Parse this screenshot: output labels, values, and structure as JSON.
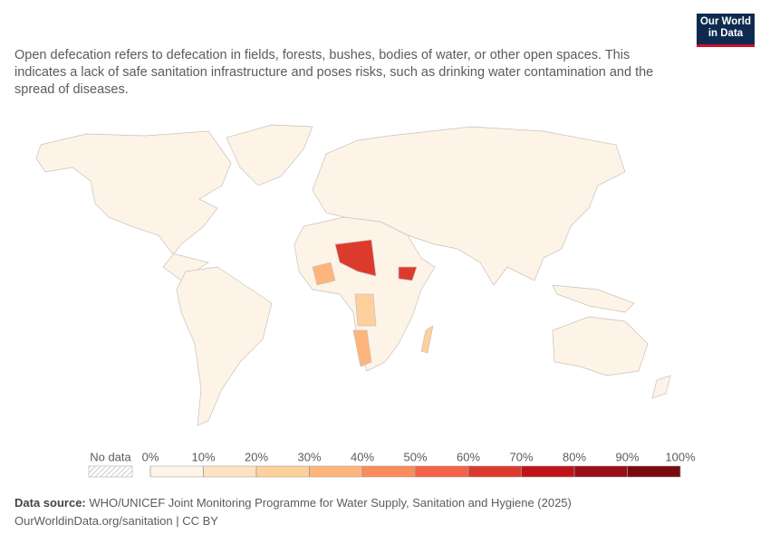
{
  "header": {
    "subtitle": "Open defecation refers to defecation in fields, forests, bushes, bodies of water, or other open spaces. This indicates a lack of safe sanitation infrastructure and poses risks, such as drinking water contamination and the spread of diseases.",
    "logo_line1": "Our World",
    "logo_line2": "in Data"
  },
  "legend": {
    "no_data": "No data",
    "bins": [
      {
        "value": 0,
        "label": "0%"
      },
      {
        "value": 10,
        "label": "10%"
      },
      {
        "value": 20,
        "label": "20%"
      },
      {
        "value": 30,
        "label": "30%"
      },
      {
        "value": 40,
        "label": "40%"
      },
      {
        "value": 50,
        "label": "50%"
      },
      {
        "value": 60,
        "label": "60%"
      },
      {
        "value": 70,
        "label": "70%"
      },
      {
        "value": 80,
        "label": "80%"
      },
      {
        "value": 90,
        "label": "90%"
      },
      {
        "value": 100,
        "label": "100%"
      }
    ],
    "colors": [
      "#fef4e8",
      "#fee3c3",
      "#fdd09c",
      "#fdb57c",
      "#fb8c5a",
      "#f2634a",
      "#dd3a2e",
      "#c1121a",
      "#9c0d15",
      "#7b0a10"
    ]
  },
  "footer": {
    "source_label": "Data source:",
    "source": "WHO/UNICEF Joint Monitoring Programme for Water Supply, Sanitation and Hygiene (2025)",
    "url": "OurWorldinData.org/sanitation | CC BY"
  }
}
